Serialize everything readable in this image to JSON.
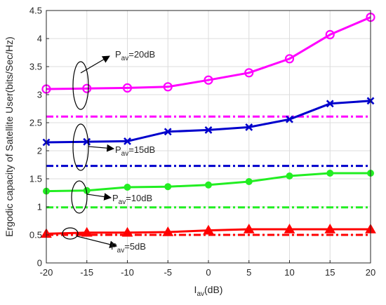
{
  "chart_data": {
    "type": "line",
    "xlabel": "I",
    "xlabel_subscript": "av",
    "xlabel_unit": "(dB)",
    "ylabel": "Ergodic capacity of Satellite User(bits/Sec/Hz)",
    "x": [
      -20,
      -15,
      -10,
      -5,
      0,
      5,
      10,
      15,
      20
    ],
    "xlim": [
      -20,
      20
    ],
    "ylim": [
      0,
      4.5
    ],
    "xticks": [
      "-20",
      "-15",
      "-10",
      "-5",
      "0",
      "5",
      "10",
      "15",
      "20"
    ],
    "yticks": [
      "0",
      "0.5",
      "1",
      "1.5",
      "2",
      "2.5",
      "3",
      "3.5",
      "4",
      "4.5"
    ],
    "grid": true,
    "legend": "none",
    "series": [
      {
        "color": "#ff00ff",
        "marker": "circle",
        "style": "solid",
        "values": [
          3.1,
          3.11,
          3.12,
          3.14,
          3.26,
          3.39,
          3.64,
          4.07,
          4.38
        ]
      },
      {
        "color": "#ff00ff",
        "marker": "none",
        "style": "dashdot",
        "values": [
          2.61,
          2.61,
          2.61,
          2.61,
          2.61,
          2.61,
          2.61,
          2.61,
          2.61
        ]
      },
      {
        "color": "#0000cc",
        "marker": "x",
        "style": "solid",
        "values": [
          2.15,
          2.16,
          2.17,
          2.34,
          2.37,
          2.42,
          2.56,
          2.84,
          2.89
        ]
      },
      {
        "color": "#0000cc",
        "marker": "none",
        "style": "dashdot",
        "values": [
          1.73,
          1.73,
          1.73,
          1.73,
          1.73,
          1.73,
          1.73,
          1.73,
          1.73
        ]
      },
      {
        "color": "#22ee22",
        "marker": "filled-circle",
        "style": "solid",
        "values": [
          1.28,
          1.29,
          1.35,
          1.36,
          1.39,
          1.45,
          1.55,
          1.6,
          1.6
        ]
      },
      {
        "color": "#22ee22",
        "marker": "none",
        "style": "dashdot",
        "values": [
          0.99,
          0.99,
          0.99,
          0.99,
          0.99,
          0.99,
          0.99,
          0.99,
          0.99
        ]
      },
      {
        "color": "#ff0000",
        "marker": "filled-triangle",
        "style": "solid",
        "values": [
          0.52,
          0.54,
          0.54,
          0.55,
          0.58,
          0.6,
          0.6,
          0.6,
          0.6
        ]
      },
      {
        "color": "#ff0000",
        "marker": "none",
        "style": "dashdot",
        "values": [
          0.5,
          0.5,
          0.5,
          0.5,
          0.5,
          0.5,
          0.5,
          0.5,
          0.5
        ]
      }
    ],
    "annotations": [
      {
        "main": "P",
        "sub": "av",
        "rest": "=20dB"
      },
      {
        "main": "P",
        "sub": "av",
        "rest": "=15dB"
      },
      {
        "main": "P",
        "sub": "av",
        "rest": "=10dB"
      },
      {
        "main": "P",
        "sub": "av",
        "rest": "=5dB"
      }
    ]
  }
}
